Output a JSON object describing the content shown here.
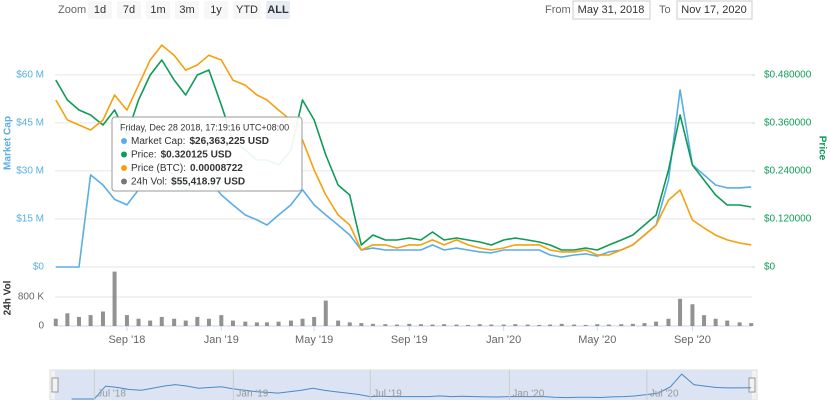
{
  "chart_data": {
    "type": "line",
    "range_selector": {
      "label": "Zoom",
      "buttons": [
        "1d",
        "7d",
        "1m",
        "3m",
        "1y",
        "YTD",
        "ALL"
      ],
      "selected": 6,
      "from_label": "From",
      "from": "May 31, 2018",
      "to_label": "To",
      "to": "Nov 17, 2020"
    },
    "x": [
      "2018-06-01",
      "2018-06-16",
      "2018-07-01",
      "2018-07-16",
      "2018-08-01",
      "2018-08-16",
      "2018-09-01",
      "2018-09-16",
      "2018-10-01",
      "2018-10-16",
      "2018-11-01",
      "2018-11-16",
      "2018-12-01",
      "2018-12-16",
      "2019-01-01",
      "2019-01-16",
      "2019-02-01",
      "2019-02-16",
      "2019-03-01",
      "2019-03-16",
      "2019-04-01",
      "2019-04-16",
      "2019-05-01",
      "2019-05-16",
      "2019-06-01",
      "2019-06-16",
      "2019-07-01",
      "2019-07-16",
      "2019-08-01",
      "2019-08-16",
      "2019-09-01",
      "2019-09-16",
      "2019-10-01",
      "2019-10-16",
      "2019-11-01",
      "2019-11-16",
      "2019-12-01",
      "2019-12-16",
      "2020-01-01",
      "2020-01-16",
      "2020-02-01",
      "2020-02-16",
      "2020-03-01",
      "2020-03-16",
      "2020-04-01",
      "2020-04-16",
      "2020-05-01",
      "2020-05-16",
      "2020-06-01",
      "2020-06-16",
      "2020-07-01",
      "2020-07-16",
      "2020-08-01",
      "2020-08-16",
      "2020-09-01",
      "2020-09-16",
      "2020-10-01",
      "2020-10-16",
      "2020-11-01",
      "2020-11-16"
    ],
    "xlim": [
      "2018-05-31",
      "2020-11-17"
    ],
    "xticks": [
      {
        "value": "2018-09-01",
        "label": "Sep '18"
      },
      {
        "value": "2019-01-01",
        "label": "Jan '19"
      },
      {
        "value": "2019-05-01",
        "label": "May '19"
      },
      {
        "value": "2019-09-01",
        "label": "Sep '19"
      },
      {
        "value": "2020-01-01",
        "label": "Jan '20"
      },
      {
        "value": "2020-05-01",
        "label": "May '20"
      },
      {
        "value": "2020-09-01",
        "label": "Sep '20"
      }
    ],
    "ylabel": "Market Cap",
    "ylim": [
      0,
      74000000
    ],
    "yticks": [
      {
        "value": 0,
        "label": "$0"
      },
      {
        "value": 15000000,
        "label": "$15 M"
      },
      {
        "value": 30000000,
        "label": "$30 M"
      },
      {
        "value": 45000000,
        "label": "$45 M"
      },
      {
        "value": 60000000,
        "label": "$60 M"
      }
    ],
    "y2label": "Price",
    "y2lim": [
      0,
      0.5925
    ],
    "y2ticks": [
      {
        "value": 0,
        "label": "$0"
      },
      {
        "value": 0.12,
        "label": "$0.120000"
      },
      {
        "value": 0.24,
        "label": "$0.240000"
      },
      {
        "value": 0.36,
        "label": "$0.360000"
      },
      {
        "value": 0.48,
        "label": "$0.480000"
      }
    ],
    "y3lim": [
      0,
      9.88e-05
    ],
    "vol_ylabel": "24h Vol",
    "vol_ylim": [
      0,
      1500000
    ],
    "vol_yticks": [
      0,
      {
        "value": 800000,
        "label": "800 K"
      }
    ],
    "grid": true,
    "series": [
      {
        "color": "#5aaee6",
        "axis": "y",
        "values": [
          0,
          0,
          0,
          28750000,
          25600000,
          21100000,
          19400000,
          24100000,
          28750000,
          31900000,
          28750000,
          24100000,
          25600000,
          27200000,
          22500000,
          19400000,
          16250000,
          14700000,
          13100000,
          16250000,
          19400000,
          24100000,
          19400000,
          16250000,
          13100000,
          10000000,
          5300000,
          5900000,
          5300000,
          5300000,
          5300000,
          5300000,
          6900000,
          5300000,
          5900000,
          5300000,
          4700000,
          4400000,
          5300000,
          5300000,
          5300000,
          5300000,
          3750000,
          3100000,
          3750000,
          4100000,
          3400000,
          4700000,
          5300000,
          6900000,
          10000000,
          13100000,
          27200000,
          55300000,
          31900000,
          28750000,
          25600000,
          24700000,
          24700000,
          25000000
        ]
      },
      {
        "color": "#0e9b57",
        "axis": "y2",
        "values": [
          0.4675,
          0.4175,
          0.3925,
          0.38,
          0.355,
          0.3925,
          0.33,
          0.4175,
          0.48,
          0.5175,
          0.4675,
          0.43,
          0.48,
          0.4925,
          0.405,
          0.3175,
          0.2925,
          0.2675,
          0.2675,
          0.255,
          0.2925,
          0.4175,
          0.3675,
          0.28,
          0.205,
          0.18,
          0.055,
          0.08,
          0.0675,
          0.0675,
          0.0725,
          0.0675,
          0.0875,
          0.0675,
          0.0725,
          0.0675,
          0.0625,
          0.055,
          0.0675,
          0.0725,
          0.0675,
          0.0625,
          0.055,
          0.0425,
          0.0425,
          0.0475,
          0.0425,
          0.055,
          0.0675,
          0.08,
          0.105,
          0.13,
          0.2425,
          0.38,
          0.255,
          0.2175,
          0.18,
          0.155,
          0.155,
          0.15
        ]
      },
      {
        "color": "#f4a10f",
        "axis": "y3",
        "values": [
          6.96e-05,
          6.13e-05,
          5.92e-05,
          5.71e-05,
          6.13e-05,
          7.17e-05,
          6.54e-05,
          7.58e-05,
          8.63e-05,
          9.25e-05,
          8.83e-05,
          8.21e-05,
          8.42e-05,
          8.83e-05,
          8.63e-05,
          7.79e-05,
          7.58e-05,
          7.17e-05,
          6.96e-05,
          6.54e-05,
          6.13e-05,
          5.29e-05,
          4.04e-05,
          3e-05,
          2.17e-05,
          1.75e-05,
          7.1e-06,
          9.2e-06,
          9.2e-06,
          7.9e-06,
          9.2e-06,
          9.2e-06,
          1.13e-05,
          9.2e-06,
          1.13e-05,
          9.2e-06,
          7.9e-06,
          7.1e-06,
          7.9e-06,
          9.2e-06,
          9.2e-06,
          9.2e-06,
          7.1e-06,
          6.3e-06,
          6.3e-06,
          7.1e-06,
          5e-06,
          5e-06,
          7.1e-06,
          9.2e-06,
          1.33e-05,
          1.75e-05,
          2.79e-05,
          3.21e-05,
          1.96e-05,
          1.63e-05,
          1.33e-05,
          1.13e-05,
          1e-05,
          9.2e-06
        ]
      },
      {
        "color": "#777777",
        "axis": "vol",
        "type": "bar",
        "values": [
          200000,
          350000,
          250000,
          300000,
          400000,
          1500000,
          300000,
          200000,
          150000,
          250000,
          200000,
          150000,
          250000,
          200000,
          300000,
          150000,
          120000,
          100000,
          100000,
          120000,
          150000,
          200000,
          250000,
          700000,
          150000,
          100000,
          80000,
          60000,
          50000,
          40000,
          60000,
          50000,
          40000,
          50000,
          40000,
          30000,
          50000,
          40000,
          40000,
          50000,
          40000,
          30000,
          40000,
          60000,
          40000,
          30000,
          50000,
          40000,
          50000,
          60000,
          80000,
          120000,
          200000,
          750000,
          600000,
          300000,
          200000,
          150000,
          100000,
          80000
        ]
      }
    ],
    "tooltip": {
      "date": "Friday, Dec 28 2018, 17:19:16 UTC+08:00",
      "items": [
        {
          "label": "Market Cap:",
          "value": "$26,363,225 USD"
        },
        {
          "label": "Price:",
          "value": "$0.320125 USD"
        },
        {
          "label": "Price (BTC):",
          "value": "0.00008722"
        },
        {
          "label": "24h Vol:",
          "value": "$55,418.97 USD"
        }
      ]
    },
    "navigator": {
      "xlim": [
        "2018-05-10",
        "2020-11-17"
      ],
      "ylim": [
        0,
        60000000
      ],
      "xticks": [
        {
          "value": "2018-07-01",
          "label": "Jul '18"
        },
        {
          "value": "2019-01-01",
          "label": "Jan '19"
        },
        {
          "value": "2019-07-01",
          "label": "Jul '19"
        },
        {
          "value": "2020-01-01",
          "label": "Jan '20"
        },
        {
          "value": "2020-07-01",
          "label": "Jul '20"
        }
      ]
    }
  }
}
